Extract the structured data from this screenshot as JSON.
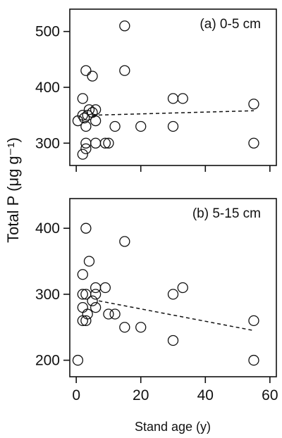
{
  "chart_data": [
    {
      "type": "scatter",
      "panel": "a",
      "title": "(a) 0-5 cm",
      "xlim": [
        -2,
        62
      ],
      "ylim": [
        260,
        540
      ],
      "xticks": [
        0,
        20,
        40,
        60
      ],
      "yticks": [
        300,
        400,
        500
      ],
      "points": [
        {
          "x": 0.5,
          "y": 340
        },
        {
          "x": 2,
          "y": 350
        },
        {
          "x": 2,
          "y": 380
        },
        {
          "x": 2,
          "y": 280
        },
        {
          "x": 2.5,
          "y": 345
        },
        {
          "x": 3,
          "y": 430
        },
        {
          "x": 3,
          "y": 330
        },
        {
          "x": 3,
          "y": 290
        },
        {
          "x": 3,
          "y": 300
        },
        {
          "x": 3.5,
          "y": 350
        },
        {
          "x": 4,
          "y": 360
        },
        {
          "x": 5,
          "y": 420
        },
        {
          "x": 5,
          "y": 355
        },
        {
          "x": 6,
          "y": 340
        },
        {
          "x": 6,
          "y": 360
        },
        {
          "x": 6,
          "y": 300
        },
        {
          "x": 9,
          "y": 300
        },
        {
          "x": 10,
          "y": 300
        },
        {
          "x": 12,
          "y": 330
        },
        {
          "x": 15,
          "y": 510
        },
        {
          "x": 15,
          "y": 430
        },
        {
          "x": 20,
          "y": 330
        },
        {
          "x": 30,
          "y": 380
        },
        {
          "x": 30,
          "y": 330
        },
        {
          "x": 33,
          "y": 380
        },
        {
          "x": 55,
          "y": 370
        },
        {
          "x": 55,
          "y": 300
        }
      ],
      "trendline": {
        "x": [
          5,
          55
        ],
        "y": [
          350,
          358
        ],
        "style": "dashed"
      }
    },
    {
      "type": "scatter",
      "panel": "b",
      "title": "(b) 5-15 cm",
      "xlim": [
        -2,
        62
      ],
      "ylim": [
        175,
        445
      ],
      "xticks": [
        0,
        20,
        40,
        60
      ],
      "yticks": [
        200,
        300,
        400
      ],
      "points": [
        {
          "x": 0.5,
          "y": 200
        },
        {
          "x": 2,
          "y": 330
        },
        {
          "x": 2,
          "y": 300
        },
        {
          "x": 2,
          "y": 280
        },
        {
          "x": 2,
          "y": 260
        },
        {
          "x": 3,
          "y": 400
        },
        {
          "x": 3,
          "y": 300
        },
        {
          "x": 3,
          "y": 260
        },
        {
          "x": 3.5,
          "y": 270
        },
        {
          "x": 4,
          "y": 350
        },
        {
          "x": 5,
          "y": 290
        },
        {
          "x": 6,
          "y": 310
        },
        {
          "x": 6,
          "y": 300
        },
        {
          "x": 6,
          "y": 280
        },
        {
          "x": 9,
          "y": 310
        },
        {
          "x": 10,
          "y": 270
        },
        {
          "x": 12,
          "y": 270
        },
        {
          "x": 15,
          "y": 380
        },
        {
          "x": 15,
          "y": 250
        },
        {
          "x": 20,
          "y": 250
        },
        {
          "x": 30,
          "y": 300
        },
        {
          "x": 30,
          "y": 230
        },
        {
          "x": 33,
          "y": 310
        },
        {
          "x": 55,
          "y": 260
        },
        {
          "x": 55,
          "y": 200
        }
      ],
      "trendline": {
        "x": [
          7,
          55
        ],
        "y": [
          290,
          245
        ],
        "style": "dashed"
      }
    }
  ],
  "axes": {
    "ylabel": "Total P (μg g⁻¹)",
    "xlabel": "Stand age (y)"
  }
}
